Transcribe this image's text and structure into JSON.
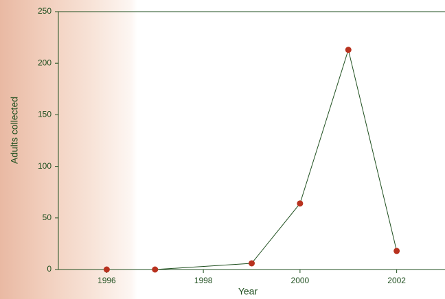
{
  "chart_data": {
    "type": "line",
    "x_label": "Year",
    "y_label": "Adults collected",
    "series": [
      {
        "name": "Adults collected",
        "color": "#1f4f1f",
        "marker_color": "#b8321f",
        "x": [
          1996,
          1997,
          1999,
          2000,
          2001,
          2002
        ],
        "values": [
          0,
          0,
          6,
          64,
          213,
          18
        ]
      }
    ],
    "xlim": [
      1995,
      2003
    ],
    "xticks": [
      1996,
      1998,
      2000,
      2002
    ],
    "ylim": [
      0,
      250
    ],
    "yticks": [
      0,
      50,
      100,
      150,
      200,
      250
    ]
  }
}
